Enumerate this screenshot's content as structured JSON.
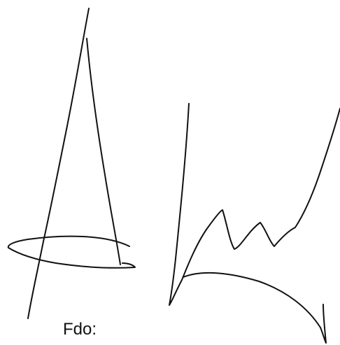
{
  "signature_label": "Fdo:"
}
